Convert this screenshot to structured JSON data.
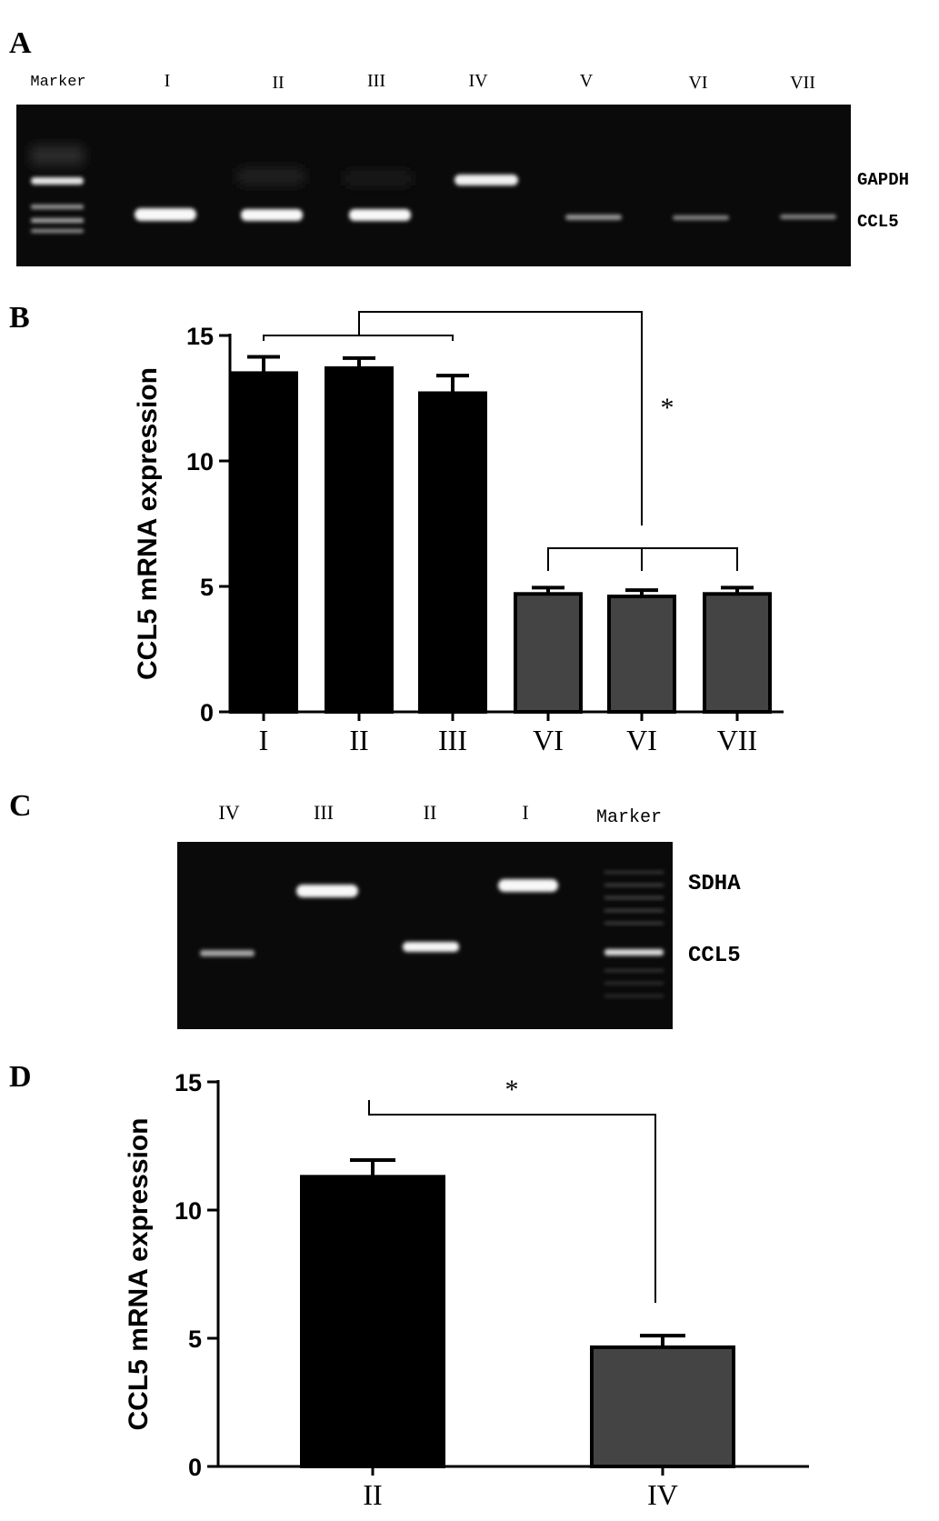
{
  "panels": {
    "A": {
      "letter": "A",
      "lane_labels": [
        "Marker",
        "I",
        "II",
        "III",
        "IV",
        "V",
        "VI",
        "VII"
      ],
      "band_labels": [
        "GAPDH",
        "CCL5"
      ]
    },
    "C": {
      "letter": "C",
      "lane_labels": [
        "IV",
        "III",
        "II",
        "I",
        "Marker"
      ],
      "band_labels": [
        "SDHA",
        "CCL5"
      ]
    },
    "B": {
      "letter": "B",
      "significance": "*"
    },
    "D": {
      "letter": "D",
      "significance": "*"
    }
  },
  "colors": {
    "bar_dark": "#000000",
    "bar_grey": "#444444",
    "gel_background": "#0a0a0a",
    "band": "#f5f5f5"
  },
  "chart_data": [
    {
      "panel": "B",
      "type": "bar",
      "categories": [
        "I",
        "II",
        "III",
        "VI",
        "VI",
        "VII"
      ],
      "values": [
        13.5,
        13.7,
        12.7,
        4.7,
        4.6,
        4.7
      ],
      "errors": [
        0.65,
        0.4,
        0.7,
        0.25,
        0.25,
        0.25
      ],
      "ylabel": "CCL5 mRNA expression",
      "xlabel": "",
      "ylim": [
        0,
        15
      ],
      "yticks": [
        0,
        5,
        10,
        15
      ],
      "grid": false,
      "legend": "none"
    },
    {
      "panel": "D",
      "type": "bar",
      "categories": [
        "II",
        "IV"
      ],
      "values": [
        11.3,
        4.65
      ],
      "errors": [
        0.65,
        0.45
      ],
      "ylabel": "CCL5 mRNA expression",
      "xlabel": "",
      "ylim": [
        0,
        15
      ],
      "yticks": [
        0,
        5,
        10,
        15
      ],
      "grid": false,
      "legend": "none"
    }
  ]
}
